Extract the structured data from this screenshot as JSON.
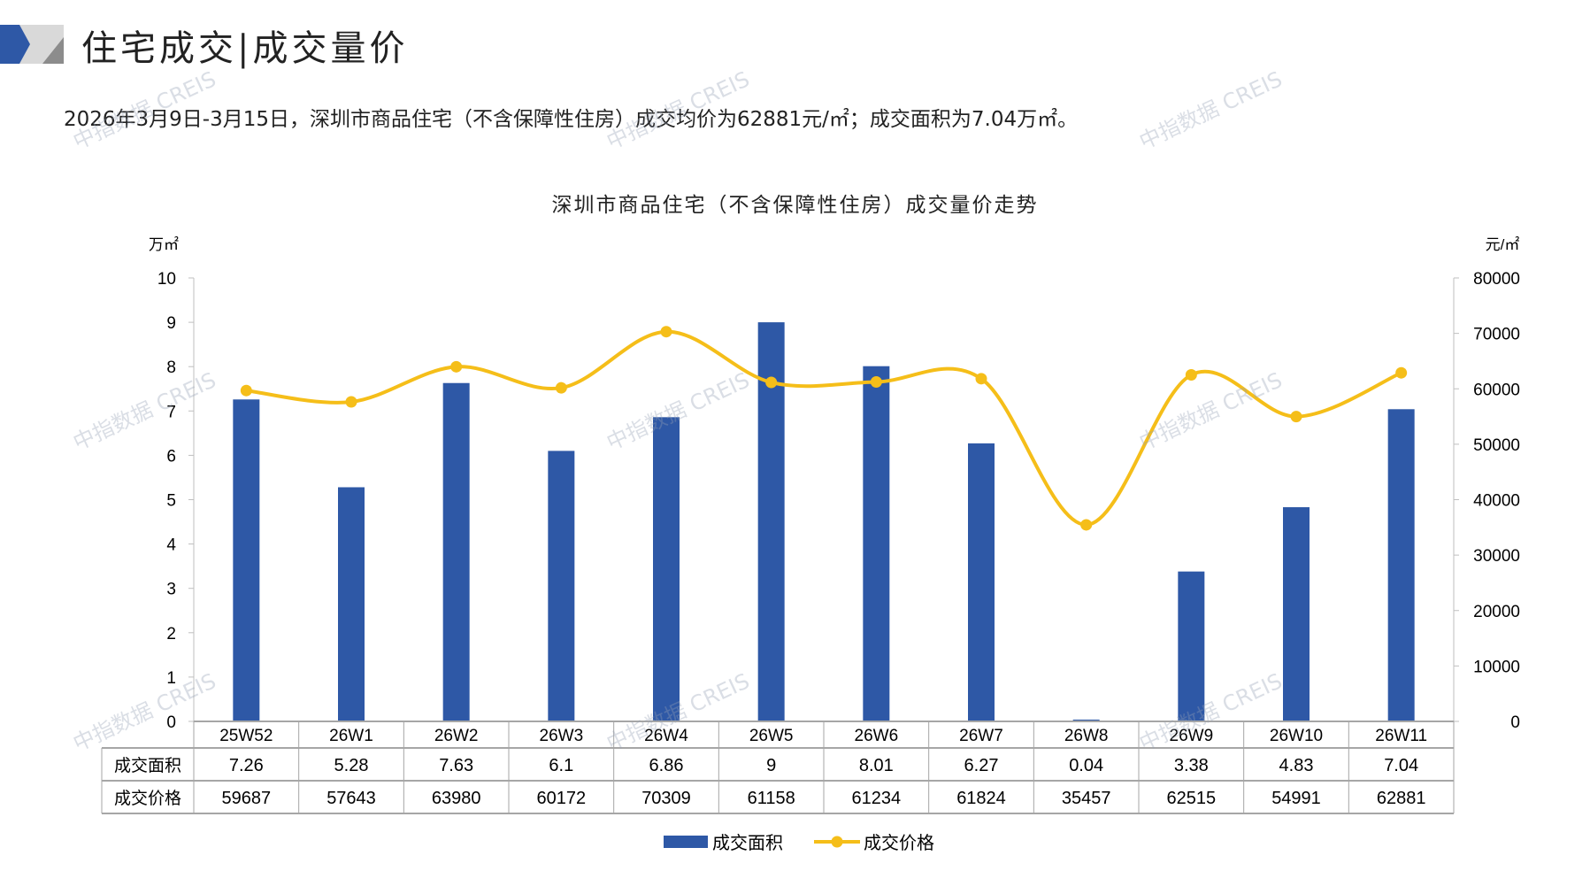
{
  "header": {
    "title": "住宅成交|成交量价",
    "summary": "2026年3月9日-3月15日，深圳市商品住宅（不含保障性住房）成交均价为62881元/㎡；成交面积为7.04万㎡。"
  },
  "watermark": "中指数据 CREIS",
  "colors": {
    "bar": "#2E58A6",
    "line": "#F5BE19",
    "accent_gray": "#A6A6A6"
  },
  "chart_data": {
    "type": "bar+line",
    "title": "深圳市商品住宅（不含保障性住房）成交量价走势",
    "categories": [
      "25W52",
      "26W1",
      "26W2",
      "26W3",
      "26W4",
      "26W5",
      "26W6",
      "26W7",
      "26W8",
      "26W9",
      "26W10",
      "26W11"
    ],
    "series": [
      {
        "name": "成交面积",
        "type": "bar",
        "axis": "left",
        "values": [
          7.26,
          5.28,
          7.63,
          6.1,
          6.86,
          9,
          8.01,
          6.27,
          0.04,
          3.38,
          4.83,
          7.04
        ],
        "display": [
          "7.26",
          "5.28",
          "7.63",
          "6.1",
          "6.86",
          "9",
          "8.01",
          "6.27",
          "0.04",
          "3.38",
          "4.83",
          "7.04"
        ]
      },
      {
        "name": "成交价格",
        "type": "line",
        "axis": "right",
        "values": [
          59687,
          57643,
          63980,
          60172,
          70309,
          61158,
          61234,
          61824,
          35457,
          62515,
          54991,
          62881
        ],
        "display": [
          "59687",
          "57643",
          "63980",
          "60172",
          "70309",
          "61158",
          "61234",
          "61824",
          "35457",
          "62515",
          "54991",
          "62881"
        ]
      }
    ],
    "y_left": {
      "label": "万㎡",
      "range": [
        0,
        10
      ],
      "ticks": [
        "0",
        "1",
        "2",
        "3",
        "4",
        "5",
        "6",
        "7",
        "8",
        "9",
        "10"
      ]
    },
    "y_right": {
      "label": "元/㎡",
      "range": [
        0,
        80000
      ],
      "ticks": [
        "0",
        "10000",
        "20000",
        "30000",
        "40000",
        "50000",
        "60000",
        "70000",
        "80000"
      ]
    },
    "legend": "bottom",
    "data_table": true
  }
}
